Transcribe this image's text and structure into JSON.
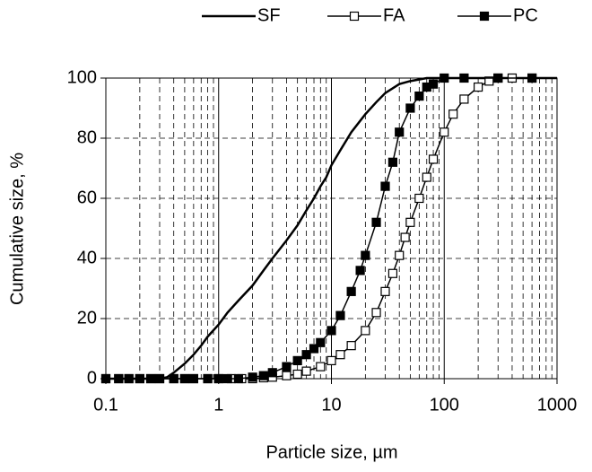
{
  "chart_data": {
    "type": "line",
    "x_label": "Particle size, µm",
    "y_label": "Cumulative size, %",
    "xscale": "log",
    "xlim": [
      0.1,
      1000
    ],
    "xticks": [
      0.1,
      1,
      10,
      100,
      1000
    ],
    "ylim": [
      0,
      100
    ],
    "yticks": [
      0,
      20,
      40,
      60,
      80,
      100
    ],
    "grid": true,
    "minor_grid": true,
    "legend": "top",
    "series": [
      {
        "name": "SF",
        "color": "#000000",
        "marker": "none",
        "x": [
          0.1,
          0.2,
          0.3,
          0.35,
          0.4,
          0.5,
          0.6,
          0.7,
          0.8,
          1,
          1.2,
          1.5,
          2,
          2.5,
          3,
          4,
          5,
          6,
          7,
          8,
          9,
          10,
          12,
          15,
          20,
          25,
          30,
          40,
          50,
          70,
          100,
          200,
          500,
          1000
        ],
        "values": [
          0,
          0,
          0,
          0.5,
          2,
          5,
          8,
          11,
          14,
          18,
          22,
          26,
          31,
          36,
          40,
          46,
          51,
          56,
          60,
          64,
          67,
          71,
          76,
          82,
          88,
          92,
          95,
          98,
          99,
          100,
          100,
          100,
          100,
          100
        ]
      },
      {
        "name": "FA",
        "color": "#000000",
        "marker": "open-square",
        "x": [
          0.1,
          0.13,
          0.16,
          0.2,
          0.25,
          0.3,
          0.4,
          0.5,
          0.6,
          0.8,
          1,
          1.3,
          1.6,
          2,
          2.5,
          3,
          4,
          5,
          6,
          8,
          10,
          12,
          15,
          20,
          25,
          30,
          35,
          40,
          45,
          50,
          60,
          70,
          80,
          100,
          120,
          150,
          200,
          250,
          300,
          400,
          600
        ],
        "values": [
          0,
          0,
          0,
          0,
          0,
          0,
          0,
          0,
          0,
          0,
          0,
          0,
          0,
          0,
          0.3,
          0.5,
          1,
          1.5,
          2.5,
          4,
          6,
          8,
          11,
          16,
          22,
          29,
          35,
          41,
          47,
          52,
          60,
          67,
          73,
          82,
          88,
          93,
          97,
          99,
          100,
          100,
          100
        ]
      },
      {
        "name": "PC",
        "color": "#000000",
        "marker": "filled-square",
        "x": [
          0.1,
          0.13,
          0.16,
          0.2,
          0.25,
          0.3,
          0.4,
          0.5,
          0.6,
          0.8,
          1,
          1.2,
          1.5,
          2,
          2.5,
          3,
          4,
          5,
          6,
          7,
          8,
          10,
          12,
          15,
          18,
          20,
          25,
          30,
          35,
          40,
          50,
          60,
          70,
          80,
          100,
          150,
          300,
          600
        ],
        "values": [
          0,
          0,
          0,
          0,
          0,
          0,
          0,
          0,
          0,
          0,
          0,
          0,
          0,
          0.5,
          1,
          2,
          4,
          6,
          8,
          10,
          12,
          16,
          21,
          29,
          36,
          41,
          52,
          64,
          72,
          82,
          90,
          94,
          97,
          98,
          100,
          100,
          100,
          100
        ]
      }
    ]
  }
}
